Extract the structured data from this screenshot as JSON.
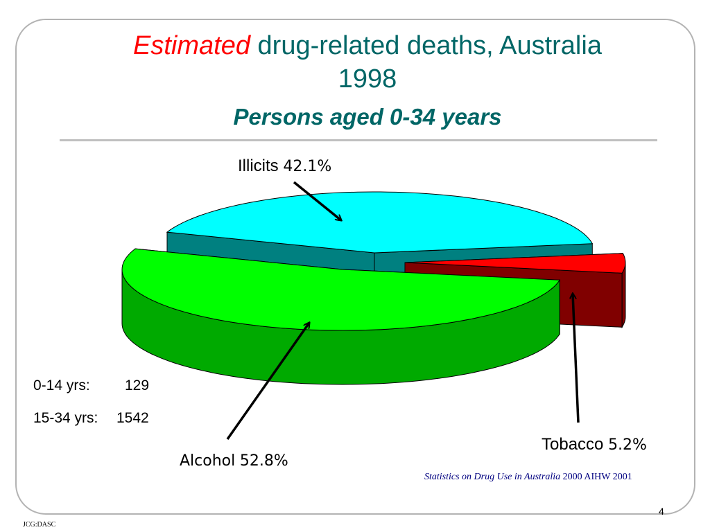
{
  "slide": {
    "title_emphasis": "Estimated",
    "title_rest": " drug-related deaths, Australia",
    "title_year": "1998",
    "subtitle": "Persons aged 0-34 years",
    "age_groups": [
      {
        "label": "0-14 yrs:",
        "value": "129"
      },
      {
        "label": "15-34 yrs:",
        "value": "1542"
      }
    ],
    "source_italic": "Statistics on Drug Use in Australia",
    "source_rest": " 2000 AIHW 2001",
    "page_number": "4",
    "footer": "JCG:DASC"
  },
  "chart_data": {
    "type": "pie",
    "style": "3d-exploded",
    "categories": [
      "Illicits",
      "Alcohol",
      "Tobacco"
    ],
    "values": [
      42.1,
      52.8,
      5.2
    ],
    "labels": [
      {
        "name": "Illicits",
        "value": "42.1%"
      },
      {
        "name": "Alcohol",
        "value": "52.8%"
      },
      {
        "name": "Tobacco",
        "value": "5.2%"
      }
    ],
    "colors": {
      "Illicits": {
        "top": "#00ffff",
        "side": "#008080"
      },
      "Alcohol": {
        "top": "#00ff00",
        "side": "#00aa00"
      },
      "Tobacco": {
        "top": "#ff0000",
        "side": "#800000"
      }
    }
  }
}
